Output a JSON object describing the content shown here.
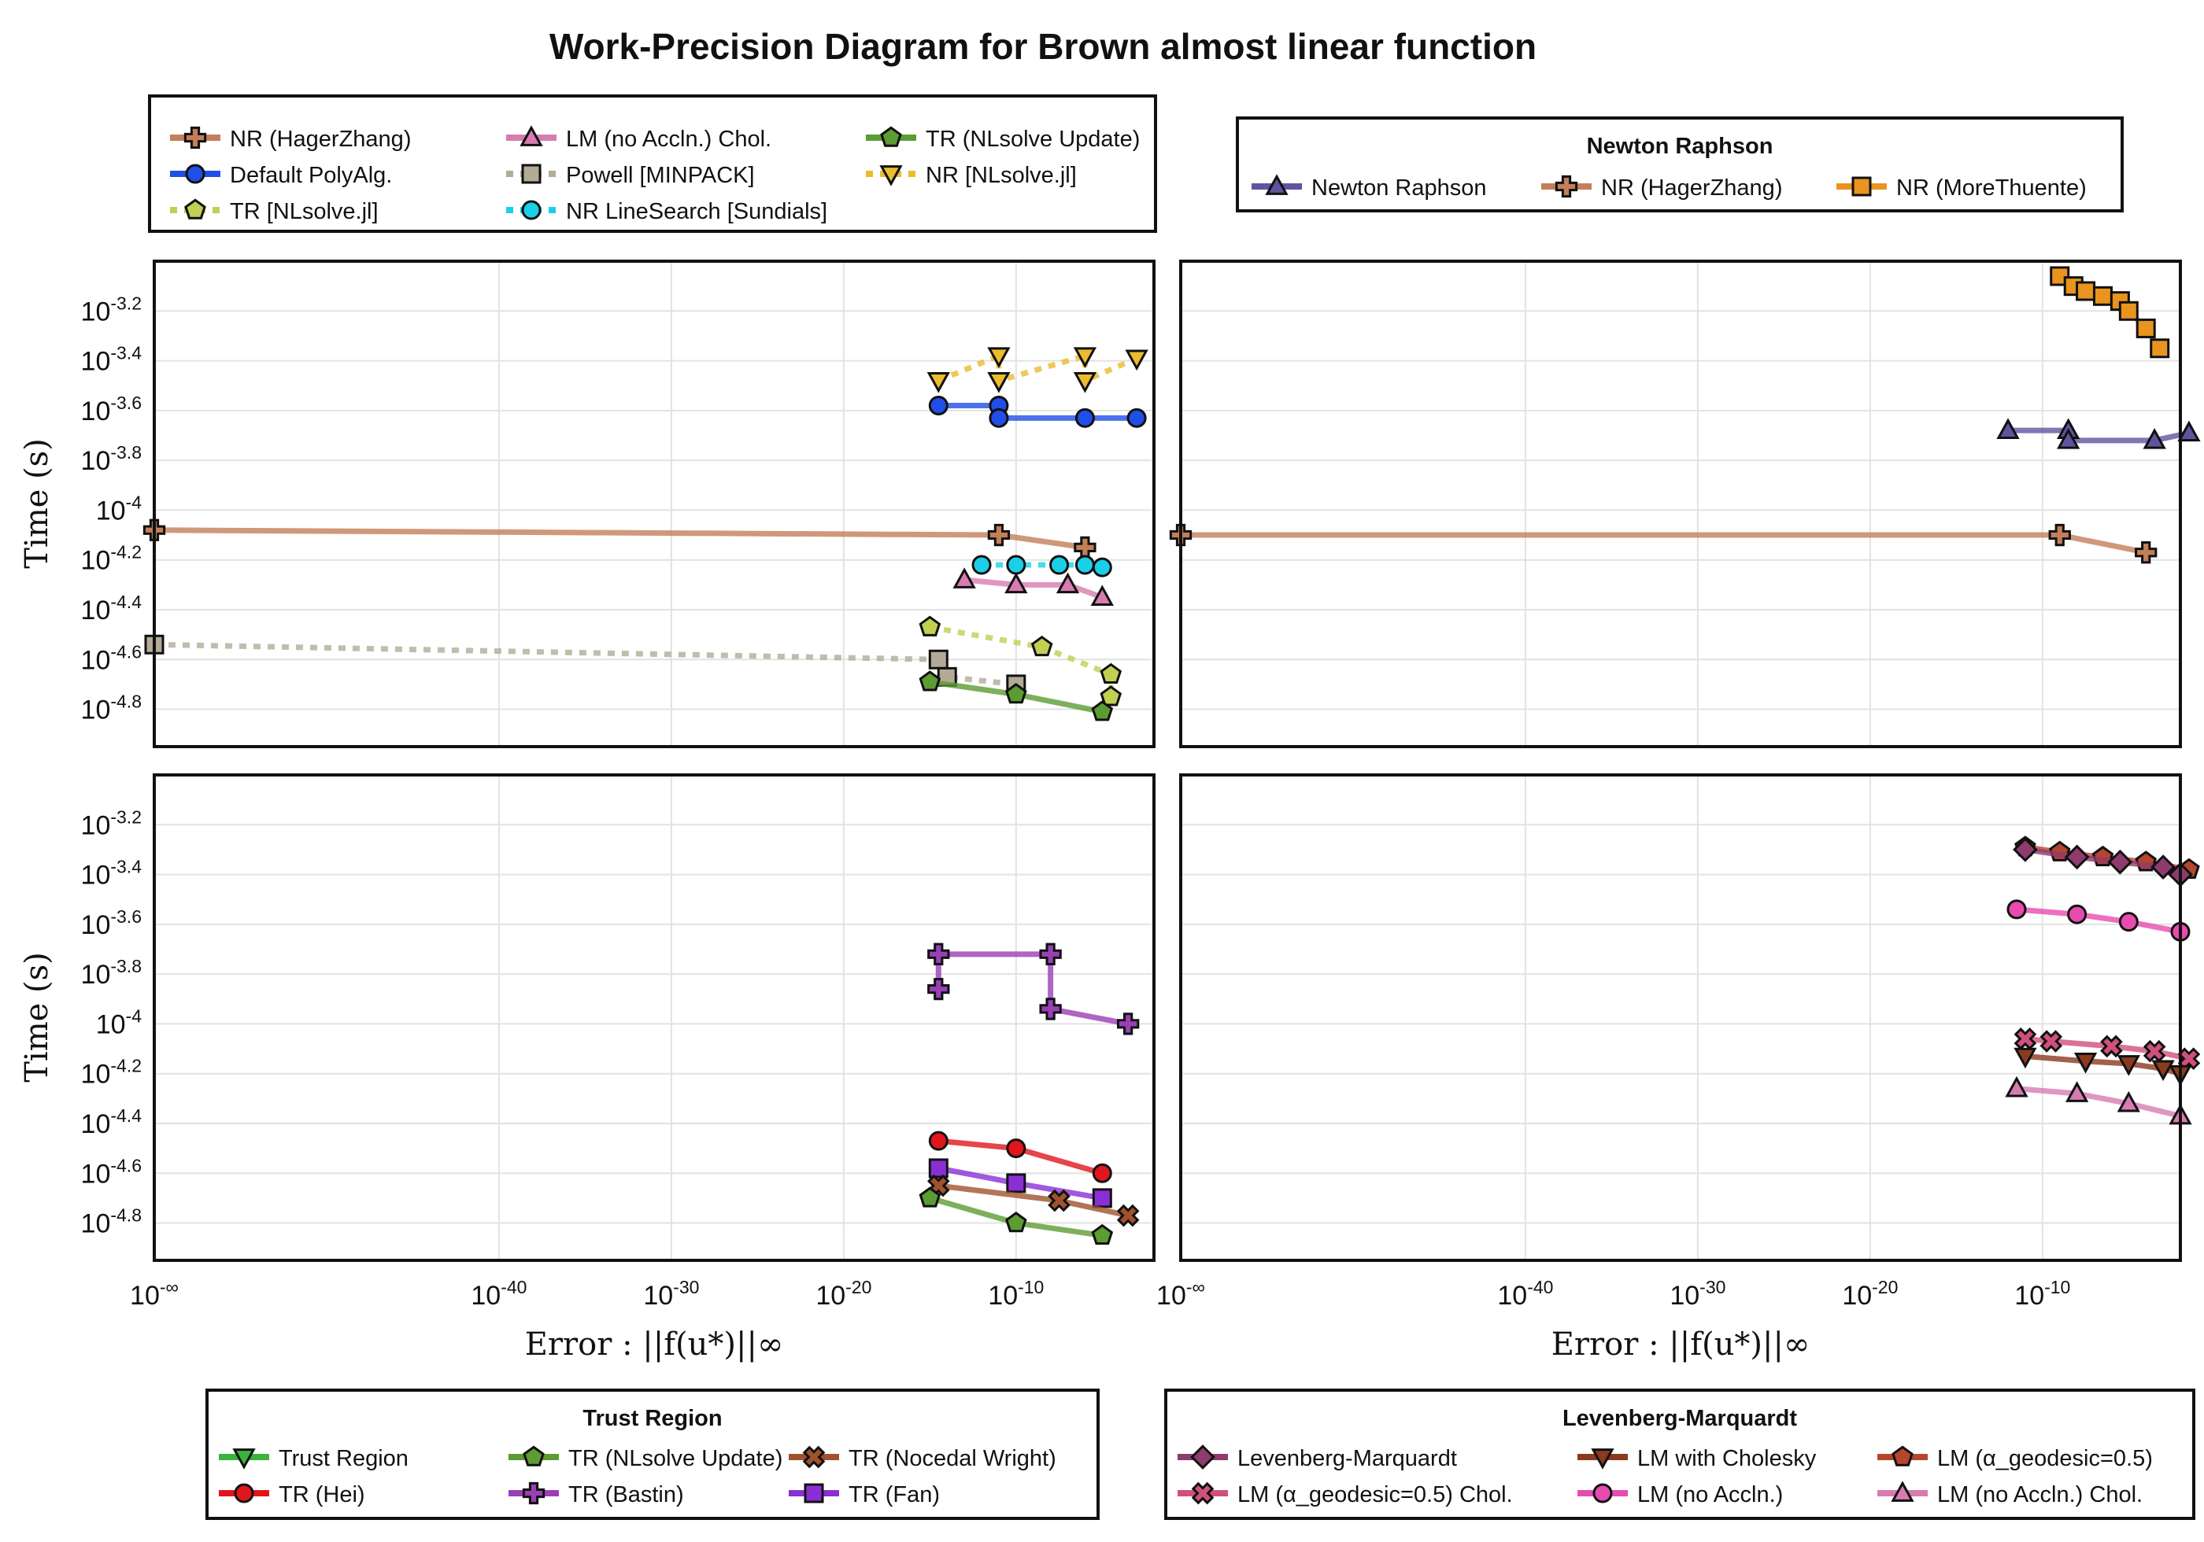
{
  "figure": {
    "title": "Work-Precision Diagram for Brown almost linear function",
    "ylabel": "Time (s)",
    "xlabel": "Error : ||f(u*)||∞"
  },
  "legends": {
    "top_left": {
      "title": "",
      "entries": [
        {
          "label": "NR (HagerZhang)",
          "color": "#c37e5a",
          "marker": "cross",
          "dash": false
        },
        {
          "label": "LM (no Accln.) Chol.",
          "color": "#d77cb0",
          "marker": "triangle",
          "dash": false
        },
        {
          "label": "TR (NLsolve Update)",
          "color": "#5c9c32",
          "marker": "pentagon",
          "dash": false
        },
        {
          "label": "Default PolyAlg.",
          "color": "#1f4ee8",
          "marker": "circle",
          "dash": false
        },
        {
          "label": "Powell [MINPACK]",
          "color": "#b3ab97",
          "marker": "square",
          "dash": true
        },
        {
          "label": "NR [NLsolve.jl]",
          "color": "#eabc2e",
          "marker": "triangle-down",
          "dash": true
        },
        {
          "label": "TR [NLsolve.jl]",
          "color": "#c2cf52",
          "marker": "pentagon",
          "dash": true
        },
        {
          "label": "NR LineSearch [Sundials]",
          "color": "#1ccfe8",
          "marker": "circle",
          "dash": true
        }
      ]
    },
    "top_right": {
      "title": "Newton Raphson",
      "entries": [
        {
          "label": "Newton Raphson",
          "color": "#5f54a0",
          "marker": "triangle",
          "dash": false
        },
        {
          "label": "NR (HagerZhang)",
          "color": "#c37e5a",
          "marker": "cross",
          "dash": false
        },
        {
          "label": "NR (MoreThuente)",
          "color": "#e8941f",
          "marker": "square",
          "dash": false
        }
      ]
    },
    "bottom_left": {
      "title": "Trust Region",
      "entries": [
        {
          "label": "Trust Region",
          "color": "#3bb33b",
          "marker": "triangle-down",
          "dash": false
        },
        {
          "label": "TR (NLsolve Update)",
          "color": "#5c9c32",
          "marker": "pentagon",
          "dash": false
        },
        {
          "label": "TR (Nocedal Wright)",
          "color": "#a0522d",
          "marker": "x",
          "dash": false
        },
        {
          "label": "TR (Hei)",
          "color": "#e0161c",
          "marker": "circle",
          "dash": false
        },
        {
          "label": "TR (Bastin)",
          "color": "#9a3fb5",
          "marker": "cross",
          "dash": false
        },
        {
          "label": "TR (Fan)",
          "color": "#8a2fd6",
          "marker": "square",
          "dash": false
        }
      ]
    },
    "bottom_right": {
      "title": "Levenberg-Marquardt",
      "entries": [
        {
          "label": "Levenberg-Marquardt",
          "color": "#8e3b6e",
          "marker": "diamond",
          "dash": false
        },
        {
          "label": "LM with Cholesky",
          "color": "#8b3a1e",
          "marker": "triangle-down",
          "dash": false
        },
        {
          "label": "LM (α_geodesic=0.5)",
          "color": "#b5462d",
          "marker": "pentagon",
          "dash": false
        },
        {
          "label": "LM (α_geodesic=0.5) Chol.",
          "color": "#d14f7e",
          "marker": "x",
          "dash": false
        },
        {
          "label": "LM (no Accln.)",
          "color": "#e84bb0",
          "marker": "circle",
          "dash": false
        },
        {
          "label": "LM (no Accln.) Chol.",
          "color": "#d77cb0",
          "marker": "triangle",
          "dash": false
        }
      ]
    }
  },
  "chart_data": [
    {
      "type": "line",
      "panel": "top-left",
      "xscale": "log",
      "yscale": "log",
      "xlim_exp": [
        -60,
        -2
      ],
      "ylim_exp": [
        -4.95,
        -3.0
      ],
      "x_ticks": [
        "10^-∞",
        "10^-40",
        "10^-30",
        "10^-20",
        "10^-10"
      ],
      "y_ticks": [
        "10^-3.2",
        "10^-3.4",
        "10^-3.6",
        "10^-3.8",
        "10^-4",
        "10^-4.2",
        "10^-4.4",
        "10^-4.6",
        "10^-4.8"
      ],
      "grid": true,
      "series": [
        {
          "name": "NR [NLsolve.jl]",
          "color": "#eabc2e",
          "marker": "triangle-down",
          "dash": true,
          "x_exp": [
            -14.5,
            -11,
            -11,
            -6,
            -6,
            -3
          ],
          "y_exp": [
            -3.48,
            -3.38,
            -3.48,
            -3.38,
            -3.48,
            -3.39
          ]
        },
        {
          "name": "Default PolyAlg.",
          "color": "#1f4ee8",
          "marker": "circle",
          "dash": false,
          "x_exp": [
            -14.5,
            -11,
            -11,
            -6,
            -3
          ],
          "y_exp": [
            -3.58,
            -3.58,
            -3.63,
            -3.63,
            -3.63
          ]
        },
        {
          "name": "NR (HagerZhang)",
          "color": "#c37e5a",
          "marker": "cross",
          "dash": false,
          "x_exp": [
            -60,
            -11,
            -6
          ],
          "y_exp": [
            -4.08,
            -4.1,
            -4.15
          ]
        },
        {
          "name": "NR LineSearch [Sundials]",
          "color": "#1ccfe8",
          "marker": "circle",
          "dash": true,
          "x_exp": [
            -12,
            -10,
            -7.5,
            -6,
            -5
          ],
          "y_exp": [
            -4.22,
            -4.22,
            -4.22,
            -4.22,
            -4.23
          ]
        },
        {
          "name": "LM (no Accln.) Chol.",
          "color": "#d77cb0",
          "marker": "triangle",
          "dash": false,
          "x_exp": [
            -13,
            -10,
            -7,
            -5
          ],
          "y_exp": [
            -4.28,
            -4.3,
            -4.3,
            -4.35
          ]
        },
        {
          "name": "TR [NLsolve.jl]",
          "color": "#c2cf52",
          "marker": "pentagon",
          "dash": true,
          "x_exp": [
            -15,
            -8.5,
            -4.5,
            -4.5
          ],
          "y_exp": [
            -4.47,
            -4.55,
            -4.66,
            -4.75
          ]
        },
        {
          "name": "Powell [MINPACK]",
          "color": "#b3ab97",
          "marker": "square",
          "dash": true,
          "x_exp": [
            -60,
            -14.5,
            -14,
            -10
          ],
          "y_exp": [
            -4.54,
            -4.6,
            -4.67,
            -4.7
          ]
        },
        {
          "name": "TR (NLsolve Update)",
          "color": "#5c9c32",
          "marker": "pentagon",
          "dash": false,
          "x_exp": [
            -15,
            -10,
            -5
          ],
          "y_exp": [
            -4.69,
            -4.74,
            -4.81
          ]
        }
      ]
    },
    {
      "type": "line",
      "panel": "top-right",
      "xscale": "log",
      "yscale": "log",
      "xlim_exp": [
        -60,
        -2
      ],
      "ylim_exp": [
        -4.95,
        -3.0
      ],
      "x_ticks": [
        "10^-∞",
        "10^-40",
        "10^-30",
        "10^-20",
        "10^-10"
      ],
      "y_ticks": [],
      "grid": true,
      "series": [
        {
          "name": "NR (MoreThuente)",
          "color": "#e8941f",
          "marker": "square",
          "dash": false,
          "x_exp": [
            -9,
            -8.2,
            -7.5,
            -6.5,
            -5.5,
            -5,
            -4,
            -3.2
          ],
          "y_exp": [
            -3.06,
            -3.1,
            -3.12,
            -3.14,
            -3.16,
            -3.2,
            -3.27,
            -3.35
          ]
        },
        {
          "name": "Newton Raphson",
          "color": "#5f54a0",
          "marker": "triangle",
          "dash": false,
          "x_exp": [
            -12,
            -8.5,
            -8.5,
            -3.5,
            -1.5
          ],
          "y_exp": [
            -3.68,
            -3.68,
            -3.72,
            -3.72,
            -3.69
          ]
        },
        {
          "name": "NR (HagerZhang)",
          "color": "#c37e5a",
          "marker": "cross",
          "dash": false,
          "x_exp": [
            -60,
            -9,
            -4
          ],
          "y_exp": [
            -4.1,
            -4.1,
            -4.17
          ]
        }
      ]
    },
    {
      "type": "line",
      "panel": "bottom-left",
      "xscale": "log",
      "yscale": "log",
      "xlim_exp": [
        -60,
        -2
      ],
      "ylim_exp": [
        -4.95,
        -3.0
      ],
      "x_ticks": [
        "10^-∞",
        "10^-40",
        "10^-30",
        "10^-20",
        "10^-10"
      ],
      "y_ticks": [
        "10^-3.2",
        "10^-3.4",
        "10^-3.6",
        "10^-3.8",
        "10^-4",
        "10^-4.2",
        "10^-4.4",
        "10^-4.6",
        "10^-4.8"
      ],
      "grid": true,
      "series": [
        {
          "name": "TR (Bastin)",
          "color": "#9a3fb5",
          "marker": "cross",
          "dash": false,
          "x_exp": [
            -14.5,
            -14.5,
            -8,
            -8,
            -3.5
          ],
          "y_exp": [
            -3.86,
            -3.72,
            -3.72,
            -3.94,
            -4.0
          ]
        },
        {
          "name": "TR (Hei)",
          "color": "#e0161c",
          "marker": "circle",
          "dash": false,
          "x_exp": [
            -14.5,
            -10,
            -5
          ],
          "y_exp": [
            -4.47,
            -4.5,
            -4.6
          ]
        },
        {
          "name": "TR (Fan)",
          "color": "#8a2fd6",
          "marker": "square",
          "dash": false,
          "x_exp": [
            -14.5,
            -10,
            -5
          ],
          "y_exp": [
            -4.58,
            -4.64,
            -4.7
          ]
        },
        {
          "name": "TR (Nocedal Wright)",
          "color": "#a0522d",
          "marker": "x",
          "dash": false,
          "x_exp": [
            -14.5,
            -7.5,
            -3.5
          ],
          "y_exp": [
            -4.65,
            -4.71,
            -4.77
          ]
        },
        {
          "name": "TR (NLsolve Update)",
          "color": "#5c9c32",
          "marker": "pentagon",
          "dash": false,
          "x_exp": [
            -15,
            -10,
            -5
          ],
          "y_exp": [
            -4.7,
            -4.8,
            -4.85
          ]
        }
      ]
    },
    {
      "type": "line",
      "panel": "bottom-right",
      "xscale": "log",
      "yscale": "log",
      "xlim_exp": [
        -60,
        -2
      ],
      "ylim_exp": [
        -4.95,
        -3.0
      ],
      "x_ticks": [
        "10^-∞",
        "10^-40",
        "10^-30",
        "10^-20",
        "10^-10"
      ],
      "y_ticks": [],
      "grid": true,
      "series": [
        {
          "name": "LM (α_geodesic=0.5)",
          "color": "#b5462d",
          "marker": "pentagon",
          "dash": false,
          "x_exp": [
            -11,
            -9,
            -6.5,
            -4,
            -1.5
          ],
          "y_exp": [
            -3.29,
            -3.31,
            -3.33,
            -3.35,
            -3.38
          ]
        },
        {
          "name": "Levenberg-Marquardt",
          "color": "#8e3b6e",
          "marker": "diamond",
          "dash": false,
          "x_exp": [
            -11,
            -8,
            -5.5,
            -3,
            -2
          ],
          "y_exp": [
            -3.3,
            -3.33,
            -3.35,
            -3.37,
            -3.4
          ]
        },
        {
          "name": "LM (no Accln.)",
          "color": "#e84bb0",
          "marker": "circle",
          "dash": false,
          "x_exp": [
            -11.5,
            -8,
            -5,
            -2
          ],
          "y_exp": [
            -3.54,
            -3.56,
            -3.59,
            -3.63
          ]
        },
        {
          "name": "LM (α_geodesic=0.5) Chol.",
          "color": "#d14f7e",
          "marker": "x",
          "dash": false,
          "x_exp": [
            -11,
            -9.5,
            -6,
            -3.5,
            -1.5
          ],
          "y_exp": [
            -4.06,
            -4.07,
            -4.09,
            -4.11,
            -4.14
          ]
        },
        {
          "name": "LM with Cholesky",
          "color": "#8b3a1e",
          "marker": "triangle-down",
          "dash": false,
          "x_exp": [
            -11,
            -7.5,
            -5,
            -3,
            -2
          ],
          "y_exp": [
            -4.13,
            -4.15,
            -4.16,
            -4.18,
            -4.2
          ]
        },
        {
          "name": "LM (no Accln.) Chol.",
          "color": "#d77cb0",
          "marker": "triangle",
          "dash": false,
          "x_exp": [
            -11.5,
            -8,
            -5,
            -2
          ],
          "y_exp": [
            -4.26,
            -4.28,
            -4.32,
            -4.37
          ]
        }
      ]
    }
  ]
}
